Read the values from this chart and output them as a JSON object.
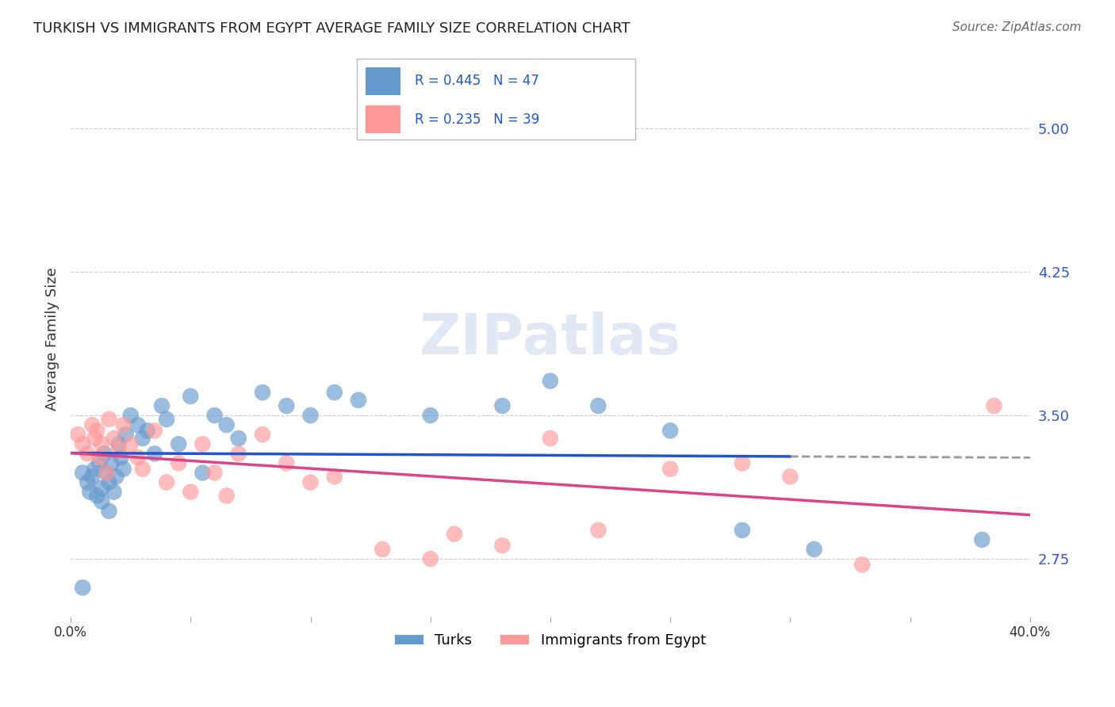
{
  "title": "TURKISH VS IMMIGRANTS FROM EGYPT AVERAGE FAMILY SIZE CORRELATION CHART",
  "source": "Source: ZipAtlas.com",
  "ylabel": "Average Family Size",
  "xlim": [
    0.0,
    0.4
  ],
  "ylim": [
    2.45,
    5.35
  ],
  "yticks_right": [
    2.75,
    3.5,
    4.25,
    5.0
  ],
  "xticks": [
    0.0,
    0.05,
    0.1,
    0.15,
    0.2,
    0.25,
    0.3,
    0.35,
    0.4
  ],
  "legend_r1": "R = 0.445   N = 47",
  "legend_r2": "R = 0.235   N = 39",
  "blue_color": "#6699CC",
  "pink_color": "#FF9999",
  "blue_line_color": "#2255CC",
  "pink_line_color": "#DD4488",
  "watermark": "ZIPatlas",
  "turks_x": [
    0.005,
    0.007,
    0.008,
    0.009,
    0.01,
    0.011,
    0.012,
    0.013,
    0.013,
    0.014,
    0.015,
    0.016,
    0.016,
    0.017,
    0.018,
    0.019,
    0.02,
    0.021,
    0.022,
    0.023,
    0.025,
    0.028,
    0.03,
    0.032,
    0.035,
    0.038,
    0.04,
    0.045,
    0.05,
    0.055,
    0.06,
    0.065,
    0.07,
    0.08,
    0.09,
    0.1,
    0.11,
    0.12,
    0.15,
    0.18,
    0.2,
    0.22,
    0.25,
    0.28,
    0.31,
    0.38,
    0.005
  ],
  "turks_y": [
    3.2,
    3.15,
    3.1,
    3.18,
    3.22,
    3.08,
    3.25,
    3.12,
    3.05,
    3.3,
    3.2,
    3.15,
    3.0,
    3.25,
    3.1,
    3.18,
    3.35,
    3.28,
    3.22,
    3.4,
    3.5,
    3.45,
    3.38,
    3.42,
    3.3,
    3.55,
    3.48,
    3.35,
    3.6,
    3.2,
    3.5,
    3.45,
    3.38,
    3.62,
    3.55,
    3.5,
    3.62,
    3.58,
    3.5,
    3.55,
    3.68,
    3.55,
    3.42,
    2.9,
    2.8,
    2.85,
    2.6
  ],
  "egypt_x": [
    0.003,
    0.005,
    0.007,
    0.009,
    0.01,
    0.011,
    0.012,
    0.013,
    0.015,
    0.016,
    0.018,
    0.02,
    0.022,
    0.025,
    0.028,
    0.03,
    0.035,
    0.04,
    0.045,
    0.05,
    0.055,
    0.06,
    0.065,
    0.07,
    0.08,
    0.09,
    0.1,
    0.11,
    0.13,
    0.15,
    0.16,
    0.18,
    0.2,
    0.22,
    0.25,
    0.28,
    0.3,
    0.33,
    0.385
  ],
  "egypt_y": [
    3.4,
    3.35,
    3.3,
    3.45,
    3.38,
    3.42,
    3.28,
    3.35,
    3.2,
    3.48,
    3.38,
    3.32,
    3.45,
    3.35,
    3.28,
    3.22,
    3.42,
    3.15,
    3.25,
    3.1,
    3.35,
    3.2,
    3.08,
    3.3,
    3.4,
    3.25,
    3.15,
    3.18,
    2.8,
    2.75,
    2.88,
    2.82,
    3.38,
    2.9,
    3.22,
    3.25,
    3.18,
    2.72,
    3.55
  ]
}
